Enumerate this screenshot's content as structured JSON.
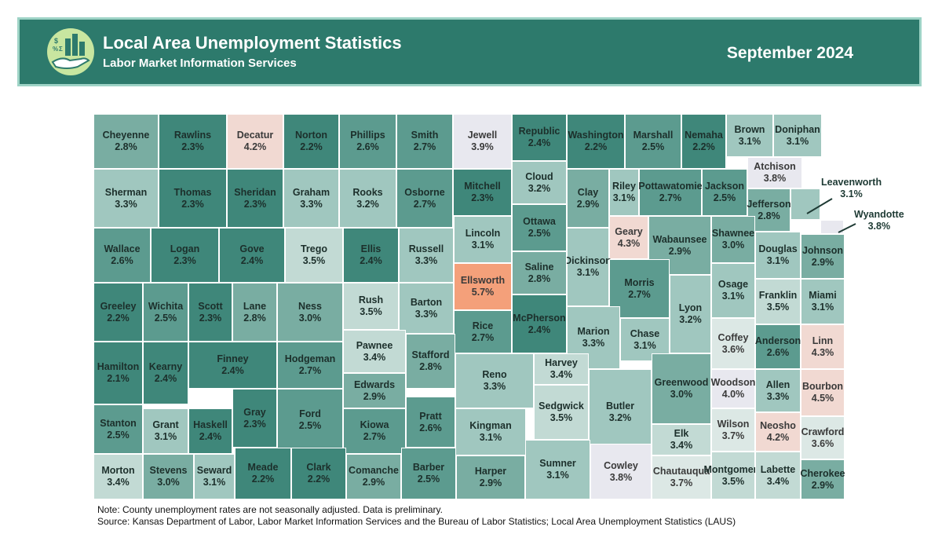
{
  "header": {
    "title": "Local Area Unemployment Statistics",
    "subtitle": "Labor Market Information Services",
    "period": "September 2024",
    "logo_icon": "hand-with-chart-logo"
  },
  "legend_colors": {
    "low": "#2f8273",
    "mid_low": "#4f9b8d",
    "mid": "#7db3a8",
    "mid_high": "#a8cac2",
    "pale": "#dce8e5",
    "light": "#ecebf0",
    "warm": "#f2d3cb",
    "orange": "#f4a582",
    "dark_orange": "#f08a5e"
  },
  "counties": [
    {
      "name": "Cheyenne",
      "rate": "2.8%"
    },
    {
      "name": "Rawlins",
      "rate": "2.3%"
    },
    {
      "name": "Decatur",
      "rate": "4.2%"
    },
    {
      "name": "Norton",
      "rate": "2.2%"
    },
    {
      "name": "Phillips",
      "rate": "2.6%"
    },
    {
      "name": "Smith",
      "rate": "2.7%"
    },
    {
      "name": "Jewell",
      "rate": "3.9%"
    },
    {
      "name": "Republic",
      "rate": "2.4%"
    },
    {
      "name": "Washington",
      "rate": "2.2%"
    },
    {
      "name": "Marshall",
      "rate": "2.5%"
    },
    {
      "name": "Nemaha",
      "rate": "2.2%"
    },
    {
      "name": "Brown",
      "rate": "3.1%"
    },
    {
      "name": "Doniphan",
      "rate": "3.1%"
    },
    {
      "name": "Sherman",
      "rate": "3.3%"
    },
    {
      "name": "Thomas",
      "rate": "2.3%"
    },
    {
      "name": "Sheridan",
      "rate": "2.3%"
    },
    {
      "name": "Graham",
      "rate": "3.3%"
    },
    {
      "name": "Rooks",
      "rate": "3.2%"
    },
    {
      "name": "Osborne",
      "rate": "2.7%"
    },
    {
      "name": "Mitchell",
      "rate": "2.3%"
    },
    {
      "name": "Cloud",
      "rate": "3.2%"
    },
    {
      "name": "Clay",
      "rate": "2.9%"
    },
    {
      "name": "Riley",
      "rate": "3.1%"
    },
    {
      "name": "Pottawatomie",
      "rate": "2.7%"
    },
    {
      "name": "Jackson",
      "rate": "2.5%"
    },
    {
      "name": "Atchison",
      "rate": "3.8%"
    },
    {
      "name": "Jefferson",
      "rate": "2.8%"
    },
    {
      "name": "Leavenworth",
      "rate": "3.1%"
    },
    {
      "name": "Wyandotte",
      "rate": "3.8%"
    },
    {
      "name": "Wallace",
      "rate": "2.6%"
    },
    {
      "name": "Logan",
      "rate": "2.3%"
    },
    {
      "name": "Gove",
      "rate": "2.4%"
    },
    {
      "name": "Trego",
      "rate": "3.5%"
    },
    {
      "name": "Ellis",
      "rate": "2.4%"
    },
    {
      "name": "Russell",
      "rate": "3.3%"
    },
    {
      "name": "Lincoln",
      "rate": "3.1%"
    },
    {
      "name": "Ottawa",
      "rate": "2.5%"
    },
    {
      "name": "Geary",
      "rate": "4.3%"
    },
    {
      "name": "Wabaunsee",
      "rate": "2.9%"
    },
    {
      "name": "Shawnee",
      "rate": "3.0%"
    },
    {
      "name": "Douglas",
      "rate": "3.1%"
    },
    {
      "name": "Johnson",
      "rate": "2.9%"
    },
    {
      "name": "Dickinson",
      "rate": "3.1%"
    },
    {
      "name": "Saline",
      "rate": "2.8%"
    },
    {
      "name": "Ellsworth",
      "rate": "5.7%"
    },
    {
      "name": "Morris",
      "rate": "2.7%"
    },
    {
      "name": "Greeley",
      "rate": "2.2%"
    },
    {
      "name": "Wichita",
      "rate": "2.5%"
    },
    {
      "name": "Scott",
      "rate": "2.3%"
    },
    {
      "name": "Lane",
      "rate": "2.8%"
    },
    {
      "name": "Ness",
      "rate": "3.0%"
    },
    {
      "name": "Rush",
      "rate": "3.5%"
    },
    {
      "name": "Barton",
      "rate": "3.3%"
    },
    {
      "name": "Osage",
      "rate": "3.1%"
    },
    {
      "name": "Franklin",
      "rate": "3.5%"
    },
    {
      "name": "Miami",
      "rate": "3.1%"
    },
    {
      "name": "Lyon",
      "rate": "3.2%"
    },
    {
      "name": "Rice",
      "rate": "2.7%"
    },
    {
      "name": "McPherson",
      "rate": "2.4%"
    },
    {
      "name": "Marion",
      "rate": "3.3%"
    },
    {
      "name": "Chase",
      "rate": "3.1%"
    },
    {
      "name": "Coffey",
      "rate": "3.6%"
    },
    {
      "name": "Anderson",
      "rate": "2.6%"
    },
    {
      "name": "Linn",
      "rate": "4.3%"
    },
    {
      "name": "Hamilton",
      "rate": "2.1%"
    },
    {
      "name": "Kearny",
      "rate": "2.4%"
    },
    {
      "name": "Finney",
      "rate": "2.4%"
    },
    {
      "name": "Hodgeman",
      "rate": "2.7%"
    },
    {
      "name": "Pawnee",
      "rate": "3.4%"
    },
    {
      "name": "Stafford",
      "rate": "2.8%"
    },
    {
      "name": "Reno",
      "rate": "3.3%"
    },
    {
      "name": "Harvey",
      "rate": "3.4%"
    },
    {
      "name": "Edwards",
      "rate": "2.9%"
    },
    {
      "name": "Gray",
      "rate": "2.3%"
    },
    {
      "name": "Ford",
      "rate": "2.5%"
    },
    {
      "name": "Butler",
      "rate": "3.2%"
    },
    {
      "name": "Greenwood",
      "rate": "3.0%"
    },
    {
      "name": "Woodson",
      "rate": "4.0%"
    },
    {
      "name": "Allen",
      "rate": "3.3%"
    },
    {
      "name": "Bourbon",
      "rate": "4.5%"
    },
    {
      "name": "Sedgwick",
      "rate": "3.5%"
    },
    {
      "name": "Stanton",
      "rate": "2.5%"
    },
    {
      "name": "Grant",
      "rate": "3.1%"
    },
    {
      "name": "Haskell",
      "rate": "2.4%"
    },
    {
      "name": "Kiowa",
      "rate": "2.7%"
    },
    {
      "name": "Pratt",
      "rate": "2.6%"
    },
    {
      "name": "Kingman",
      "rate": "3.1%"
    },
    {
      "name": "Wilson",
      "rate": "3.7%"
    },
    {
      "name": "Neosho",
      "rate": "4.2%"
    },
    {
      "name": "Crawford",
      "rate": "3.6%"
    },
    {
      "name": "Elk",
      "rate": "3.4%"
    },
    {
      "name": "Morton",
      "rate": "3.4%"
    },
    {
      "name": "Stevens",
      "rate": "3.0%"
    },
    {
      "name": "Seward",
      "rate": "3.1%"
    },
    {
      "name": "Meade",
      "rate": "2.2%"
    },
    {
      "name": "Clark",
      "rate": "2.2%"
    },
    {
      "name": "Comanche",
      "rate": "2.9%"
    },
    {
      "name": "Barber",
      "rate": "2.5%"
    },
    {
      "name": "Harper",
      "rate": "2.9%"
    },
    {
      "name": "Sumner",
      "rate": "3.1%"
    },
    {
      "name": "Cowley",
      "rate": "3.8%"
    },
    {
      "name": "Chautauqua",
      "rate": "3.7%"
    },
    {
      "name": "Montgomery",
      "rate": "3.5%"
    },
    {
      "name": "Labette",
      "rate": "3.4%"
    },
    {
      "name": "Cherokee",
      "rate": "2.9%"
    }
  ],
  "footer": {
    "note": "Note: County unemployment rates are not seasonally adjusted. Data is preliminary.",
    "source": "Source: Kansas Department of Labor, Labor Market Information Services and the Bureau of Labor Statistics; Local Area Unemployment Statistics (LAUS)"
  }
}
